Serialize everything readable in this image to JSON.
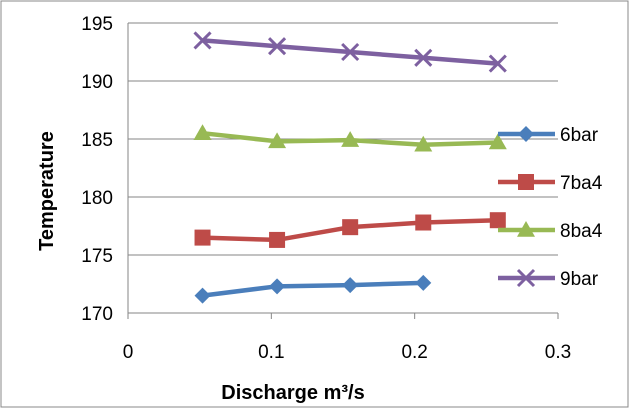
{
  "chart_data": {
    "type": "line",
    "title": "",
    "xlabel": "Discharge m³/s",
    "ylabel": "Temperature",
    "xlim": [
      0,
      0.3
    ],
    "ylim": [
      170,
      195
    ],
    "x_ticks": [
      "0",
      "0.1",
      "0.2",
      "0.3"
    ],
    "y_ticks": [
      "170",
      "175",
      "180",
      "185",
      "190",
      "195"
    ],
    "grid": "horizontal",
    "legend_position": "right",
    "series": [
      {
        "name": "6bar",
        "color": "#4A7EBB",
        "marker": "diamond",
        "x": [
          0.052,
          0.104,
          0.155,
          0.206
        ],
        "y": [
          171.5,
          172.3,
          172.4,
          172.6
        ]
      },
      {
        "name": "7ba4",
        "color": "#BE4B48",
        "marker": "square",
        "x": [
          0.052,
          0.104,
          0.155,
          0.206,
          0.258
        ],
        "y": [
          176.5,
          176.3,
          177.4,
          177.8,
          178.0
        ]
      },
      {
        "name": "8ba4",
        "color": "#98B954",
        "marker": "triangle",
        "x": [
          0.052,
          0.104,
          0.155,
          0.206,
          0.258
        ],
        "y": [
          185.5,
          184.8,
          184.9,
          184.5,
          184.7
        ]
      },
      {
        "name": "9bar",
        "color": "#7D60A0",
        "marker": "x",
        "x": [
          0.052,
          0.104,
          0.155,
          0.206,
          0.258
        ],
        "y": [
          193.5,
          193.0,
          192.5,
          192.0,
          191.5
        ]
      }
    ]
  }
}
